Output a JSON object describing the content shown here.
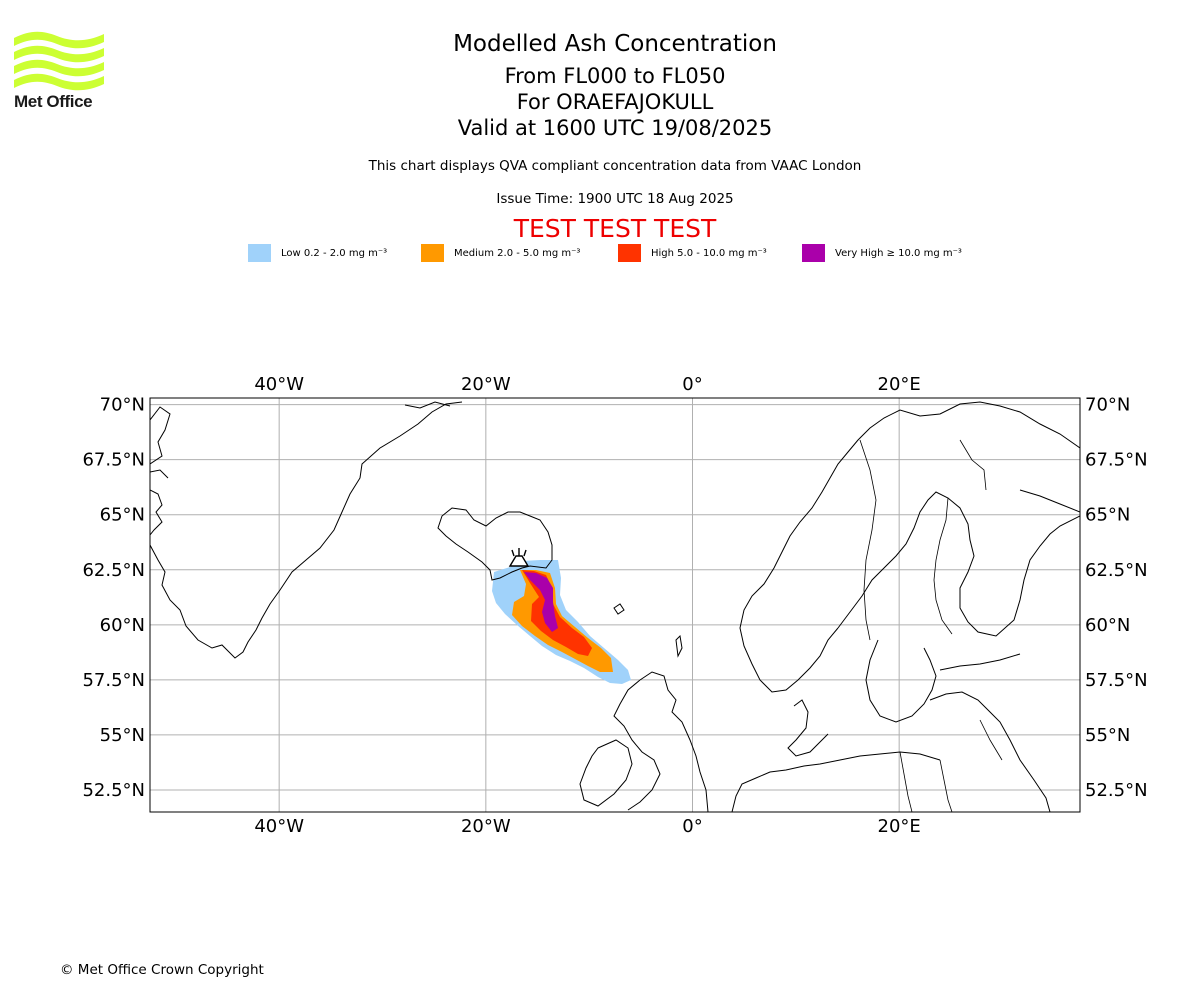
{
  "logo": {
    "text": "Met Office",
    "color": "#ccff33"
  },
  "header": {
    "title": "Modelled Ash Concentration",
    "levels": "From FL000 to FL050",
    "volcano": "For ORAEFAJOKULL",
    "valid": "Valid at 1600 UTC 19/08/2025",
    "note": "This chart displays QVA compliant concentration data from VAAC London",
    "issue": "Issue Time: 1900 UTC 18 Aug 2025",
    "test_banner": "TEST TEST TEST",
    "test_color": "#ee0000"
  },
  "legend": [
    {
      "label": "Low 0.2 - 2.0 mg m⁻³",
      "color": "#a0d2fa"
    },
    {
      "label": "Medium 2.0 - 5.0 mg m⁻³",
      "color": "#ff9900"
    },
    {
      "label": "High 5.0 - 10.0 mg m⁻³",
      "color": "#ff3300"
    },
    {
      "label": "Very High ≥ 10.0 mg m⁻³",
      "color": "#aa00aa"
    }
  ],
  "map": {
    "projection": "plate-carree",
    "lon_range": [
      -52.5,
      37.5
    ],
    "lat_range": [
      51.5,
      70.3
    ],
    "lon_ticks": [
      {
        "lon": -40,
        "label": "40°W"
      },
      {
        "lon": -20,
        "label": "20°W"
      },
      {
        "lon": 0,
        "label": "0°"
      },
      {
        "lon": 20,
        "label": "20°E"
      }
    ],
    "lat_ticks": [
      {
        "lat": 70,
        "label": "70°N"
      },
      {
        "lat": 67.5,
        "label": "67.5°N"
      },
      {
        "lat": 65,
        "label": "65°N"
      },
      {
        "lat": 62.5,
        "label": "62.5°N"
      },
      {
        "lat": 60,
        "label": "60°N"
      },
      {
        "lat": 57.5,
        "label": "57.5°N"
      },
      {
        "lat": 55,
        "label": "55°N"
      },
      {
        "lat": 52.5,
        "label": "52.5°N"
      }
    ],
    "gridlines": true,
    "volcano_location": {
      "lon": -16.6,
      "lat": 64.0
    }
  },
  "footer": {
    "copyright": "© Met Office Crown Copyright"
  }
}
